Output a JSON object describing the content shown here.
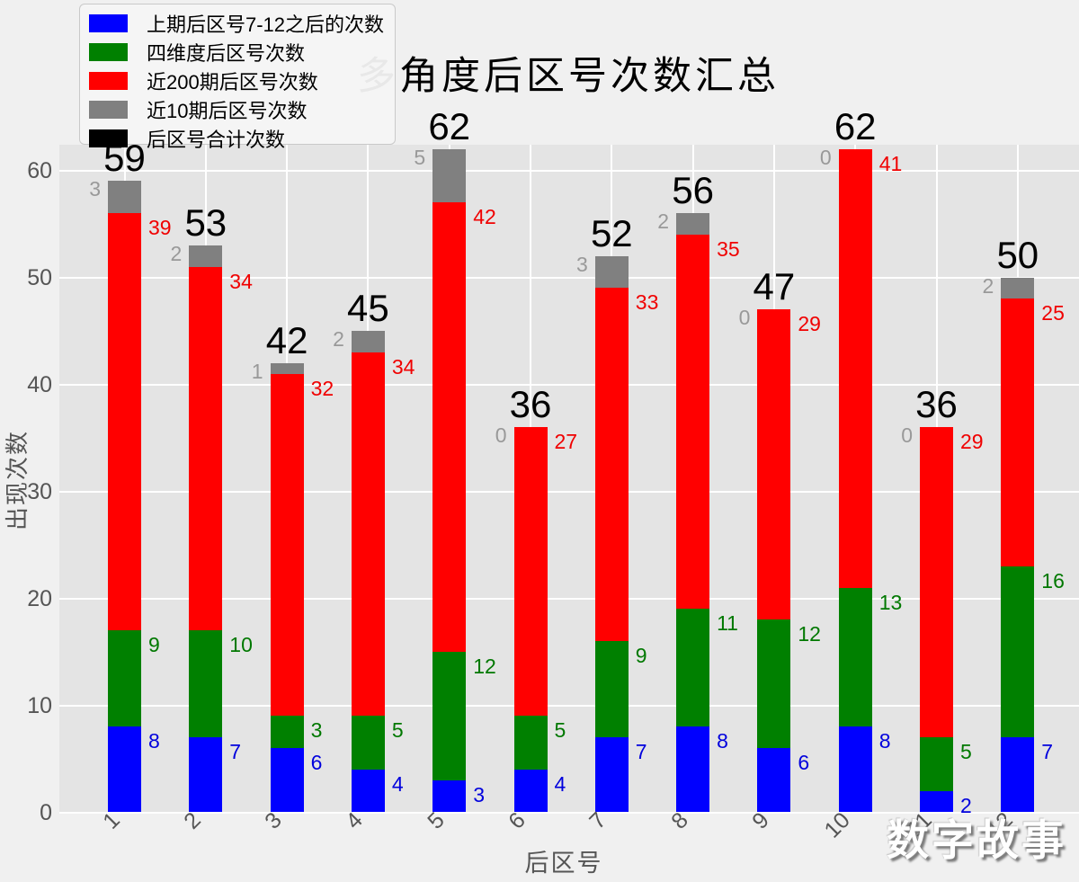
{
  "figure": {
    "background": "#f0f0f0",
    "plot_background": "#e4e4e4",
    "grid_color": "#ffffff",
    "tick_color": "#555555"
  },
  "watermark": {
    "text": "数字故事"
  },
  "chart_data": {
    "type": "bar",
    "subtype": "stacked",
    "title": "多角度后区号次数汇总",
    "xlabel": "后区号",
    "ylabel": "出现次数",
    "categories": [
      "1",
      "2",
      "3",
      "4",
      "5",
      "6",
      "7",
      "8",
      "9",
      "10",
      "11",
      "12"
    ],
    "yticks": [
      0,
      10,
      20,
      30,
      40,
      50,
      60
    ],
    "ylim": [
      0,
      62.4
    ],
    "grid": true,
    "legend_position": "upper-left",
    "series": [
      {
        "name": "上期后区号7-12之后的次数",
        "color": "#0000ff",
        "label_color": "#0000dd",
        "values": [
          8,
          7,
          6,
          4,
          3,
          4,
          7,
          8,
          6,
          8,
          2,
          7
        ]
      },
      {
        "name": "四维度后区号次数",
        "color": "#008000",
        "label_color": "#007800",
        "values": [
          9,
          10,
          3,
          5,
          12,
          5,
          9,
          11,
          12,
          13,
          5,
          16
        ]
      },
      {
        "name": "近200期后区号次数",
        "color": "#ff0000",
        "label_color": "#f00000",
        "values": [
          39,
          34,
          32,
          34,
          42,
          27,
          33,
          35,
          29,
          41,
          29,
          25
        ]
      },
      {
        "name": "近10期后区号次数",
        "color": "#808080",
        "label_color": "#999999",
        "values": [
          3,
          2,
          1,
          2,
          5,
          0,
          3,
          2,
          0,
          0,
          0,
          2
        ]
      }
    ],
    "totals": {
      "name": "后区号合计次数",
      "color": "#000000",
      "values": [
        59,
        53,
        42,
        45,
        62,
        36,
        52,
        56,
        47,
        62,
        36,
        50
      ]
    }
  }
}
